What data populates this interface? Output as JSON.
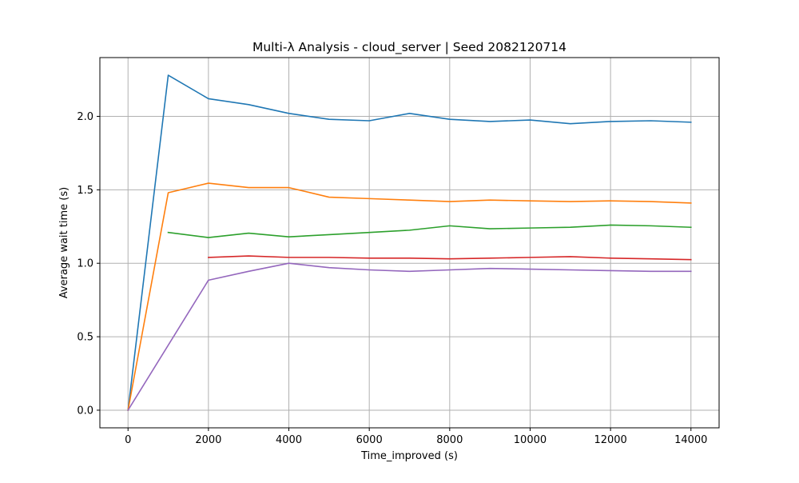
{
  "chart_data": {
    "type": "line",
    "title": "Multi-λ Analysis - cloud_server | Seed 2082120714",
    "xlabel": "Time_improved (s)",
    "ylabel": "Average wait time (s)",
    "xlim": [
      -700,
      14700
    ],
    "ylim": [
      -0.12,
      2.4
    ],
    "xticks": [
      0,
      2000,
      4000,
      6000,
      8000,
      10000,
      12000,
      14000
    ],
    "xtick_labels": [
      "0",
      "2000",
      "4000",
      "6000",
      "8000",
      "10000",
      "12000",
      "14000"
    ],
    "yticks": [
      0.0,
      0.5,
      1.0,
      1.5,
      2.0
    ],
    "ytick_labels": [
      "0.0",
      "0.5",
      "1.0",
      "1.5",
      "2.0"
    ],
    "grid": true,
    "series": [
      {
        "color": "#1f77b4",
        "x": [
          0,
          1000,
          2000,
          3000,
          4000,
          5000,
          6000,
          7000,
          8000,
          9000,
          10000,
          11000,
          12000,
          13000,
          14000
        ],
        "y": [
          0.0,
          2.28,
          2.12,
          2.08,
          2.02,
          1.98,
          1.97,
          2.02,
          1.98,
          1.965,
          1.975,
          1.95,
          1.965,
          1.97,
          1.96
        ]
      },
      {
        "color": "#ff7f0e",
        "x": [
          0,
          1000,
          2000,
          3000,
          4000,
          5000,
          6000,
          7000,
          8000,
          9000,
          10000,
          11000,
          12000,
          13000,
          14000
        ],
        "y": [
          0.0,
          1.48,
          1.545,
          1.515,
          1.515,
          1.45,
          1.44,
          1.43,
          1.42,
          1.43,
          1.425,
          1.42,
          1.425,
          1.42,
          1.41
        ]
      },
      {
        "color": "#2ca02c",
        "x": [
          1000,
          2000,
          3000,
          4000,
          5000,
          6000,
          7000,
          8000,
          9000,
          10000,
          11000,
          12000,
          13000,
          14000
        ],
        "y": [
          1.21,
          1.175,
          1.205,
          1.18,
          1.195,
          1.21,
          1.225,
          1.255,
          1.235,
          1.24,
          1.245,
          1.26,
          1.255,
          1.245
        ]
      },
      {
        "color": "#d62728",
        "x": [
          2000,
          3000,
          4000,
          5000,
          6000,
          7000,
          8000,
          9000,
          10000,
          11000,
          12000,
          13000,
          14000
        ],
        "y": [
          1.04,
          1.05,
          1.04,
          1.04,
          1.035,
          1.035,
          1.03,
          1.035,
          1.04,
          1.045,
          1.035,
          1.03,
          1.025
        ]
      },
      {
        "color": "#9467bd",
        "x": [
          0,
          2000,
          3000,
          4000,
          5000,
          6000,
          7000,
          8000,
          9000,
          10000,
          11000,
          12000,
          13000,
          14000
        ],
        "y": [
          0.0,
          0.885,
          0.945,
          1.0,
          0.97,
          0.955,
          0.945,
          0.955,
          0.965,
          0.96,
          0.955,
          0.95,
          0.945,
          0.945
        ]
      }
    ]
  }
}
